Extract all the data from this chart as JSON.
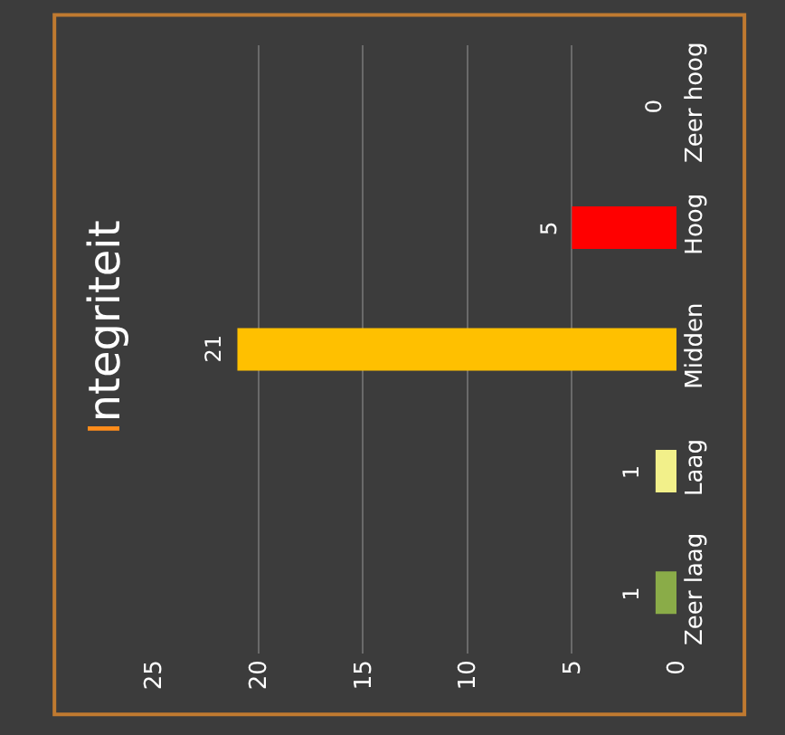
{
  "chart_data": {
    "type": "bar",
    "orientation": "horizontal",
    "title": "Integriteit",
    "categories": [
      "Zeer hoog",
      "Hoog",
      "Midden",
      "Laag",
      "Zeer laag"
    ],
    "values": [
      0,
      5,
      21,
      1,
      1
    ],
    "colors": [
      "#7f7f7f",
      "#ff0000",
      "#ffc000",
      "#f2f08a",
      "#8aac48"
    ],
    "xlim": [
      25,
      0
    ],
    "xticks": [
      0,
      5,
      10,
      15,
      20,
      25
    ],
    "grid": "x",
    "data_labels": true
  }
}
